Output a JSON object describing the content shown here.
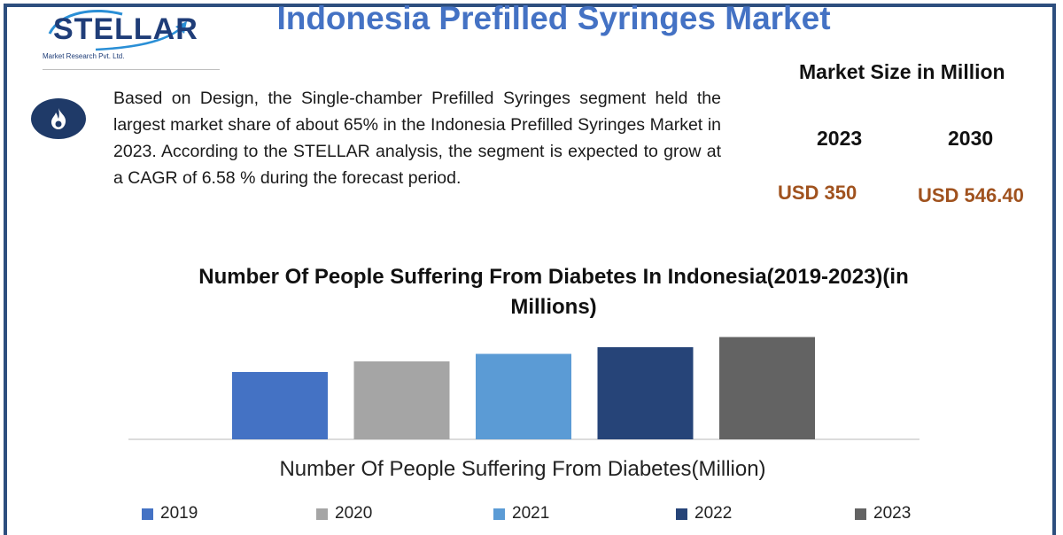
{
  "header": {
    "title": "Indonesia Prefilled Syringes Market",
    "logo_text": "STELLAR",
    "logo_subtext": "Market Research Pvt. Ltd."
  },
  "description": "Based on Design, the Single-chamber Prefilled Syringes segment held the largest market share of about 65% in the Indonesia Prefilled Syringes Market in 2023. According to the STELLAR analysis, the segment is expected to grow at a CAGR of 6.58 % during the forecast period.",
  "market_size": {
    "title": "Market Size in Million",
    "years": [
      "2023",
      "2030"
    ],
    "values": [
      "USD 350",
      "USD 546.40"
    ]
  },
  "colors": {
    "title": "#4472c4",
    "frame": "#2d4e7e",
    "value": "#a0521e"
  },
  "chart_data": {
    "type": "bar",
    "title": "Number Of People Suffering From Diabetes In Indonesia(2019-2023)(in Millions)",
    "xlabel": "Number Of People Suffering From Diabetes(Million)",
    "ylabel": "",
    "categories": [
      "2019",
      "2020",
      "2021",
      "2022",
      "2023"
    ],
    "values": [
      15.2,
      17.6,
      19.3,
      20.8,
      23.1
    ],
    "colors": [
      "#4472c4",
      "#a5a5a5",
      "#5b9bd5",
      "#264478",
      "#636363"
    ],
    "ylim": [
      0,
      24
    ],
    "grid": false,
    "legend": "bottom"
  }
}
